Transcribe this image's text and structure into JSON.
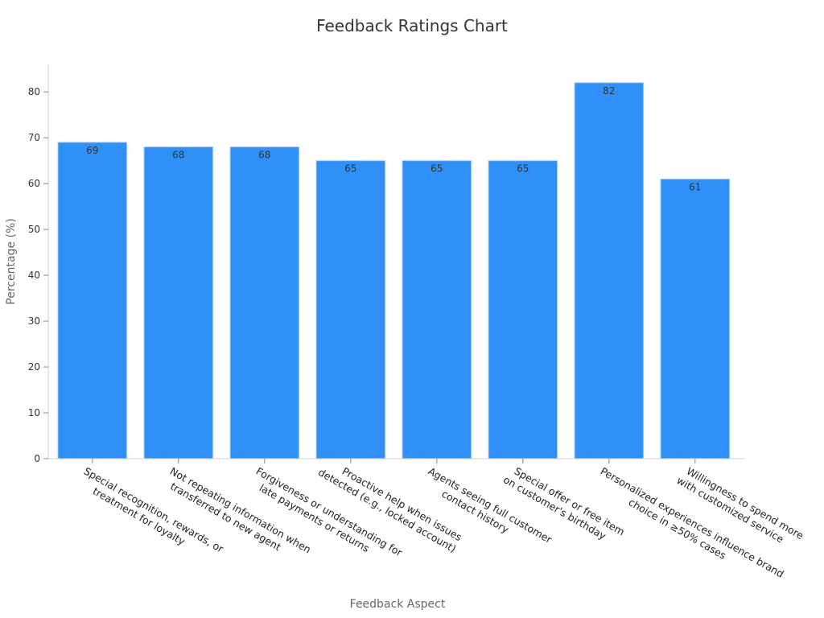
{
  "chart_data": {
    "type": "bar",
    "title": "Feedback Ratings Chart",
    "xlabel": "Feedback Aspect",
    "ylabel": "Percentage (%)",
    "ylim": [
      0,
      86
    ],
    "yticks": [
      0,
      10,
      20,
      30,
      40,
      50,
      60,
      70,
      80
    ],
    "grid": false,
    "bar_color": "#2f91f7",
    "categories": [
      [
        "Special recognition, rewards, or",
        "treatment for loyalty"
      ],
      [
        "Not repeating information when",
        "transferred to new agent"
      ],
      [
        "Forgiveness or understanding for",
        "late payments or returns"
      ],
      [
        "Proactive help when issues",
        "detected (e.g., locked account)"
      ],
      [
        "Agents seeing full customer",
        "contact history"
      ],
      [
        "Special offer or free item",
        "on customer's birthday"
      ],
      [
        "Personalized experiences influence brand",
        "choice in ≥50% cases"
      ],
      [
        "Willingness to spend more",
        "with customized service"
      ]
    ],
    "values": [
      69,
      68,
      68,
      65,
      65,
      65,
      82,
      61
    ]
  }
}
